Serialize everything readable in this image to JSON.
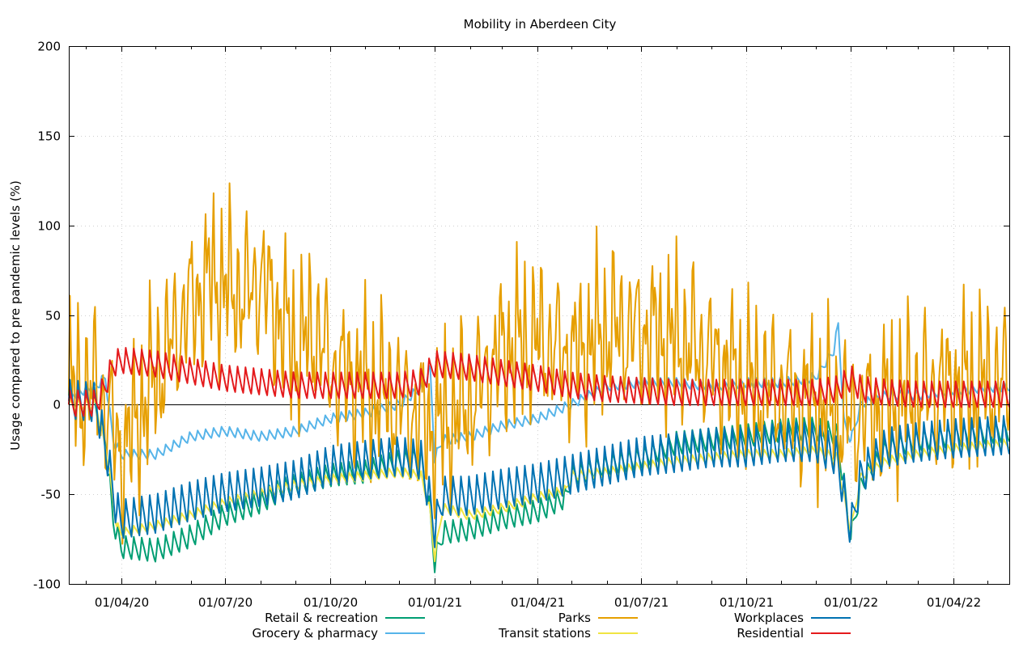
{
  "chart_data": {
    "type": "line",
    "title": "Mobility in Aberdeen City",
    "xlabel": "",
    "ylabel": "Usage compared to pre pandemic levels (%)",
    "ylim": [
      -100,
      200
    ],
    "xlim": [
      "2020-02-15",
      "2022-05-20"
    ],
    "yticks": [
      -100,
      -50,
      0,
      50,
      100,
      150,
      200
    ],
    "xticks": [
      {
        "date": "2020-04-01",
        "label": "01/04/20"
      },
      {
        "date": "2020-07-01",
        "label": "01/07/20"
      },
      {
        "date": "2020-10-01",
        "label": "01/10/20"
      },
      {
        "date": "2021-01-01",
        "label": "01/01/21"
      },
      {
        "date": "2021-04-01",
        "label": "01/04/21"
      },
      {
        "date": "2021-07-01",
        "label": "01/07/21"
      },
      {
        "date": "2021-10-01",
        "label": "01/10/21"
      },
      {
        "date": "2022-01-01",
        "label": "01/01/22"
      },
      {
        "date": "2022-04-01",
        "label": "01/04/22"
      }
    ],
    "grid": true,
    "zero_line": true,
    "legend_placement": "bottom",
    "sampling": "approximate weekly levels; weekly swing shown as amplitude",
    "series": [
      {
        "name": "Retail & recreation",
        "color": "#009e73",
        "amplitude": 7,
        "points": [
          [
            "2020-02-15",
            0
          ],
          [
            "2020-03-08",
            0
          ],
          [
            "2020-03-18",
            -20
          ],
          [
            "2020-03-25",
            -65
          ],
          [
            "2020-04-01",
            -80
          ],
          [
            "2020-05-01",
            -82
          ],
          [
            "2020-06-01",
            -74
          ],
          [
            "2020-07-01",
            -62
          ],
          [
            "2020-08-01",
            -55
          ],
          [
            "2020-08-20",
            -48
          ],
          [
            "2020-10-01",
            -40
          ],
          [
            "2020-11-01",
            -38
          ],
          [
            "2020-12-01",
            -32
          ],
          [
            "2020-12-20",
            -30
          ],
          [
            "2020-12-28",
            -62
          ],
          [
            "2021-01-01",
            -88
          ],
          [
            "2021-01-08",
            -72
          ],
          [
            "2021-02-01",
            -70
          ],
          [
            "2021-03-01",
            -64
          ],
          [
            "2021-04-01",
            -60
          ],
          [
            "2021-04-26",
            -52
          ],
          [
            "2021-05-01",
            -40
          ],
          [
            "2021-06-01",
            -34
          ],
          [
            "2021-07-01",
            -30
          ],
          [
            "2021-08-01",
            -22
          ],
          [
            "2021-09-01",
            -20
          ],
          [
            "2021-10-01",
            -18
          ],
          [
            "2021-11-01",
            -15
          ],
          [
            "2021-12-01",
            -14
          ],
          [
            "2021-12-20",
            -18
          ],
          [
            "2021-12-27",
            -50
          ],
          [
            "2022-01-01",
            -75
          ],
          [
            "2022-01-10",
            -45
          ],
          [
            "2022-02-01",
            -25
          ],
          [
            "2022-03-01",
            -20
          ],
          [
            "2022-04-01",
            -18
          ],
          [
            "2022-05-20",
            -15
          ]
        ]
      },
      {
        "name": "Grocery & pharmacy",
        "color": "#56b4e9",
        "amplitude": 3,
        "points": [
          [
            "2020-02-15",
            5
          ],
          [
            "2020-03-10",
            10
          ],
          [
            "2020-03-18",
            15
          ],
          [
            "2020-03-25",
            -20
          ],
          [
            "2020-04-01",
            -28
          ],
          [
            "2020-05-01",
            -28
          ],
          [
            "2020-05-20",
            -22
          ],
          [
            "2020-06-01",
            -18
          ],
          [
            "2020-07-01",
            -15
          ],
          [
            "2020-08-01",
            -18
          ],
          [
            "2020-09-01",
            -15
          ],
          [
            "2020-10-01",
            -8
          ],
          [
            "2020-11-01",
            -5
          ],
          [
            "2020-12-01",
            0
          ],
          [
            "2020-12-22",
            10
          ],
          [
            "2020-12-28",
            20
          ],
          [
            "2021-01-01",
            -30
          ],
          [
            "2021-01-08",
            -20
          ],
          [
            "2021-02-01",
            -18
          ],
          [
            "2021-03-01",
            -12
          ],
          [
            "2021-04-01",
            -8
          ],
          [
            "2021-05-01",
            0
          ],
          [
            "2021-06-01",
            10
          ],
          [
            "2021-07-01",
            12
          ],
          [
            "2021-08-01",
            12
          ],
          [
            "2021-09-01",
            10
          ],
          [
            "2021-10-01",
            12
          ],
          [
            "2021-11-01",
            12
          ],
          [
            "2021-12-01",
            15
          ],
          [
            "2021-12-17",
            30
          ],
          [
            "2021-12-21",
            45
          ],
          [
            "2021-12-26",
            -10
          ],
          [
            "2022-01-01",
            -20
          ],
          [
            "2022-01-10",
            0
          ],
          [
            "2022-02-01",
            5
          ],
          [
            "2022-03-01",
            5
          ],
          [
            "2022-04-01",
            8
          ],
          [
            "2022-05-20",
            10
          ]
        ]
      },
      {
        "name": "Parks",
        "color": "#e69f00",
        "amplitude": 32,
        "points": [
          [
            "2020-02-15",
            5
          ],
          [
            "2020-03-10",
            8
          ],
          [
            "2020-03-25",
            -15
          ],
          [
            "2020-04-01",
            -30
          ],
          [
            "2020-04-15",
            -10
          ],
          [
            "2020-05-01",
            15
          ],
          [
            "2020-05-20",
            40
          ],
          [
            "2020-06-01",
            55
          ],
          [
            "2020-06-20",
            70
          ],
          [
            "2020-07-01",
            65
          ],
          [
            "2020-07-20",
            60
          ],
          [
            "2020-08-01",
            70
          ],
          [
            "2020-08-20",
            45
          ],
          [
            "2020-09-01",
            30
          ],
          [
            "2020-09-20",
            40
          ],
          [
            "2020-10-01",
            20
          ],
          [
            "2020-11-01",
            10
          ],
          [
            "2020-12-01",
            0
          ],
          [
            "2021-01-01",
            -15
          ],
          [
            "2021-02-01",
            0
          ],
          [
            "2021-03-01",
            30
          ],
          [
            "2021-04-01",
            35
          ],
          [
            "2021-05-01",
            25
          ],
          [
            "2021-06-01",
            40
          ],
          [
            "2021-07-01",
            40
          ],
          [
            "2021-08-01",
            35
          ],
          [
            "2021-09-01",
            25
          ],
          [
            "2021-10-01",
            10
          ],
          [
            "2021-11-01",
            5
          ],
          [
            "2021-12-01",
            0
          ],
          [
            "2022-01-01",
            -10
          ],
          [
            "2022-02-01",
            0
          ],
          [
            "2022-03-01",
            5
          ],
          [
            "2022-04-01",
            10
          ],
          [
            "2022-05-20",
            12
          ]
        ]
      },
      {
        "name": "Transit stations",
        "color": "#f0e442",
        "amplitude": 3,
        "points": [
          [
            "2020-02-15",
            0
          ],
          [
            "2020-03-10",
            0
          ],
          [
            "2020-03-20",
            -30
          ],
          [
            "2020-03-28",
            -68
          ],
          [
            "2020-04-01",
            -72
          ],
          [
            "2020-05-01",
            -68
          ],
          [
            "2020-06-01",
            -62
          ],
          [
            "2020-07-01",
            -55
          ],
          [
            "2020-08-01",
            -50
          ],
          [
            "2020-09-01",
            -45
          ],
          [
            "2020-10-01",
            -42
          ],
          [
            "2020-11-01",
            -40
          ],
          [
            "2020-12-01",
            -38
          ],
          [
            "2020-12-20",
            -40
          ],
          [
            "2020-12-28",
            -60
          ],
          [
            "2021-01-01",
            -85
          ],
          [
            "2021-01-08",
            -58
          ],
          [
            "2021-02-01",
            -62
          ],
          [
            "2021-03-01",
            -58
          ],
          [
            "2021-04-01",
            -52
          ],
          [
            "2021-04-26",
            -48
          ],
          [
            "2021-05-01",
            -40
          ],
          [
            "2021-06-01",
            -38
          ],
          [
            "2021-07-01",
            -35
          ],
          [
            "2021-08-01",
            -32
          ],
          [
            "2021-09-01",
            -30
          ],
          [
            "2021-10-01",
            -28
          ],
          [
            "2021-11-01",
            -28
          ],
          [
            "2021-12-01",
            -26
          ],
          [
            "2021-12-20",
            -30
          ],
          [
            "2021-12-27",
            -55
          ],
          [
            "2022-01-01",
            -70
          ],
          [
            "2022-01-10",
            -40
          ],
          [
            "2022-02-01",
            -32
          ],
          [
            "2022-03-01",
            -28
          ],
          [
            "2022-04-01",
            -25
          ],
          [
            "2022-05-20",
            -22
          ]
        ]
      },
      {
        "name": "Workplaces",
        "color": "#0072b2",
        "amplitude": 12,
        "points": [
          [
            "2020-02-15",
            2
          ],
          [
            "2020-03-10",
            0
          ],
          [
            "2020-03-20",
            -30
          ],
          [
            "2020-03-28",
            -60
          ],
          [
            "2020-04-01",
            -65
          ],
          [
            "2020-05-01",
            -62
          ],
          [
            "2020-06-01",
            -55
          ],
          [
            "2020-07-01",
            -50
          ],
          [
            "2020-08-01",
            -47
          ],
          [
            "2020-09-01",
            -43
          ],
          [
            "2020-10-01",
            -35
          ],
          [
            "2020-11-01",
            -32
          ],
          [
            "2020-12-01",
            -30
          ],
          [
            "2020-12-20",
            -32
          ],
          [
            "2020-12-28",
            -55
          ],
          [
            "2021-01-01",
            -70
          ],
          [
            "2021-01-08",
            -52
          ],
          [
            "2021-02-01",
            -52
          ],
          [
            "2021-03-01",
            -48
          ],
          [
            "2021-04-01",
            -45
          ],
          [
            "2021-05-01",
            -40
          ],
          [
            "2021-06-01",
            -35
          ],
          [
            "2021-07-01",
            -30
          ],
          [
            "2021-08-01",
            -28
          ],
          [
            "2021-09-01",
            -25
          ],
          [
            "2021-10-01",
            -25
          ],
          [
            "2021-11-01",
            -22
          ],
          [
            "2021-12-01",
            -22
          ],
          [
            "2021-12-20",
            -30
          ],
          [
            "2021-12-27",
            -55
          ],
          [
            "2022-01-01",
            -70
          ],
          [
            "2022-01-10",
            -40
          ],
          [
            "2022-02-01",
            -25
          ],
          [
            "2022-03-01",
            -22
          ],
          [
            "2022-04-01",
            -20
          ],
          [
            "2022-05-20",
            -18
          ]
        ]
      },
      {
        "name": "Residential",
        "color": "#e41a1c",
        "amplitude": 8,
        "points": [
          [
            "2020-02-15",
            0
          ],
          [
            "2020-03-10",
            0
          ],
          [
            "2020-03-18",
            10
          ],
          [
            "2020-03-25",
            22
          ],
          [
            "2020-04-01",
            24
          ],
          [
            "2020-05-01",
            22
          ],
          [
            "2020-06-01",
            18
          ],
          [
            "2020-07-01",
            14
          ],
          [
            "2020-08-01",
            12
          ],
          [
            "2020-09-01",
            10
          ],
          [
            "2020-10-01",
            10
          ],
          [
            "2020-11-01",
            10
          ],
          [
            "2020-12-01",
            10
          ],
          [
            "2020-12-20",
            12
          ],
          [
            "2021-01-01",
            22
          ],
          [
            "2021-02-01",
            20
          ],
          [
            "2021-03-01",
            17
          ],
          [
            "2021-04-01",
            14
          ],
          [
            "2021-05-01",
            10
          ],
          [
            "2021-06-01",
            8
          ],
          [
            "2021-07-01",
            7
          ],
          [
            "2021-08-01",
            6
          ],
          [
            "2021-09-01",
            6
          ],
          [
            "2021-10-01",
            6
          ],
          [
            "2021-11-01",
            6
          ],
          [
            "2021-12-01",
            6
          ],
          [
            "2021-12-20",
            8
          ],
          [
            "2022-01-01",
            14
          ],
          [
            "2022-01-10",
            8
          ],
          [
            "2022-02-01",
            6
          ],
          [
            "2022-03-01",
            5
          ],
          [
            "2022-04-01",
            5
          ],
          [
            "2022-05-20",
            5
          ]
        ]
      }
    ]
  }
}
